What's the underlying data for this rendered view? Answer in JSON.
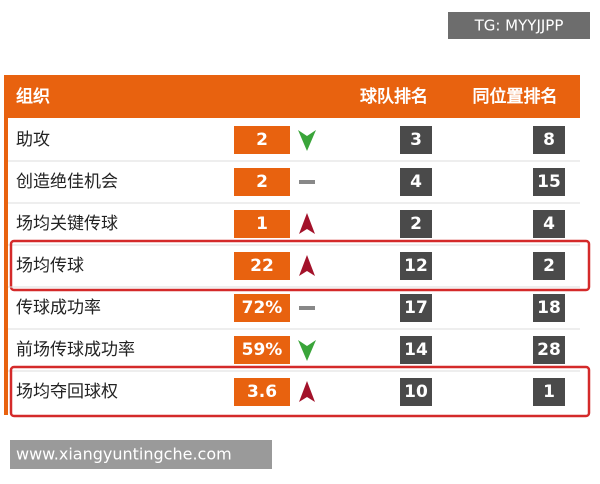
{
  "watermark_top": "TG: MYYJJPP",
  "header": {
    "title": "组织",
    "team_rank": "球队排名",
    "position_rank": "同位置排名"
  },
  "table": {
    "rows": [
      {
        "label": "助攻",
        "value": "2",
        "trend": "down",
        "team_rank": 3,
        "position_rank": 8,
        "highlight": false
      },
      {
        "label": "创造绝佳机会",
        "value": "2",
        "trend": "flat",
        "team_rank": 4,
        "position_rank": 15,
        "highlight": false
      },
      {
        "label": "场均关键传球",
        "value": "1",
        "trend": "up",
        "team_rank": 2,
        "position_rank": 4,
        "highlight": false
      },
      {
        "label": "场均传球",
        "value": "22",
        "trend": "up",
        "team_rank": 12,
        "position_rank": 2,
        "highlight": true
      },
      {
        "label": "传球成功率",
        "value": "72%",
        "trend": "flat",
        "team_rank": 17,
        "position_rank": 18,
        "highlight": false
      },
      {
        "label": "前场传球成功率",
        "value": "59%",
        "trend": "down",
        "team_rank": 14,
        "position_rank": 28,
        "highlight": false
      },
      {
        "label": "场均夺回球权",
        "value": "3.6",
        "trend": "up",
        "team_rank": 10,
        "position_rank": 1,
        "highlight": true
      }
    ]
  },
  "watermark_bottom": "www.xiangyuntingche.com"
}
